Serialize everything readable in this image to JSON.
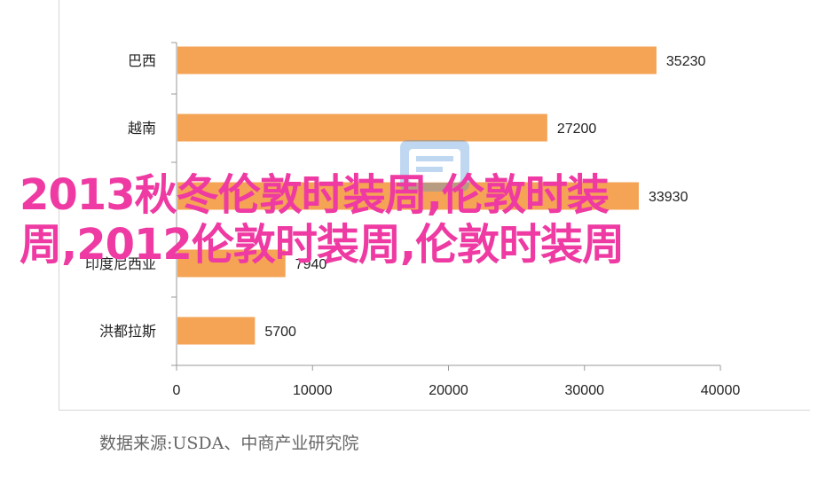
{
  "chart_data": {
    "type": "bar",
    "orientation": "horizontal",
    "categories": [
      "巴西",
      "越南",
      "",
      "印度尼西亚",
      "洪都拉斯"
    ],
    "values": [
      35230,
      27200,
      33930,
      7940,
      5700
    ],
    "value_labels": [
      "35230",
      "27200",
      "33930",
      "7940",
      "5700"
    ],
    "xlim": [
      0,
      40000
    ],
    "xticks": [
      "0",
      "10000",
      "20000",
      "30000",
      "40000"
    ],
    "bar_color": "#f5a354",
    "grid": false
  },
  "overlay_title": "2013秋冬伦敦时装周,伦敦时装周,2012伦敦时装周,伦敦时装周",
  "source_text": "数据来源:USDA、中商产业研究院"
}
